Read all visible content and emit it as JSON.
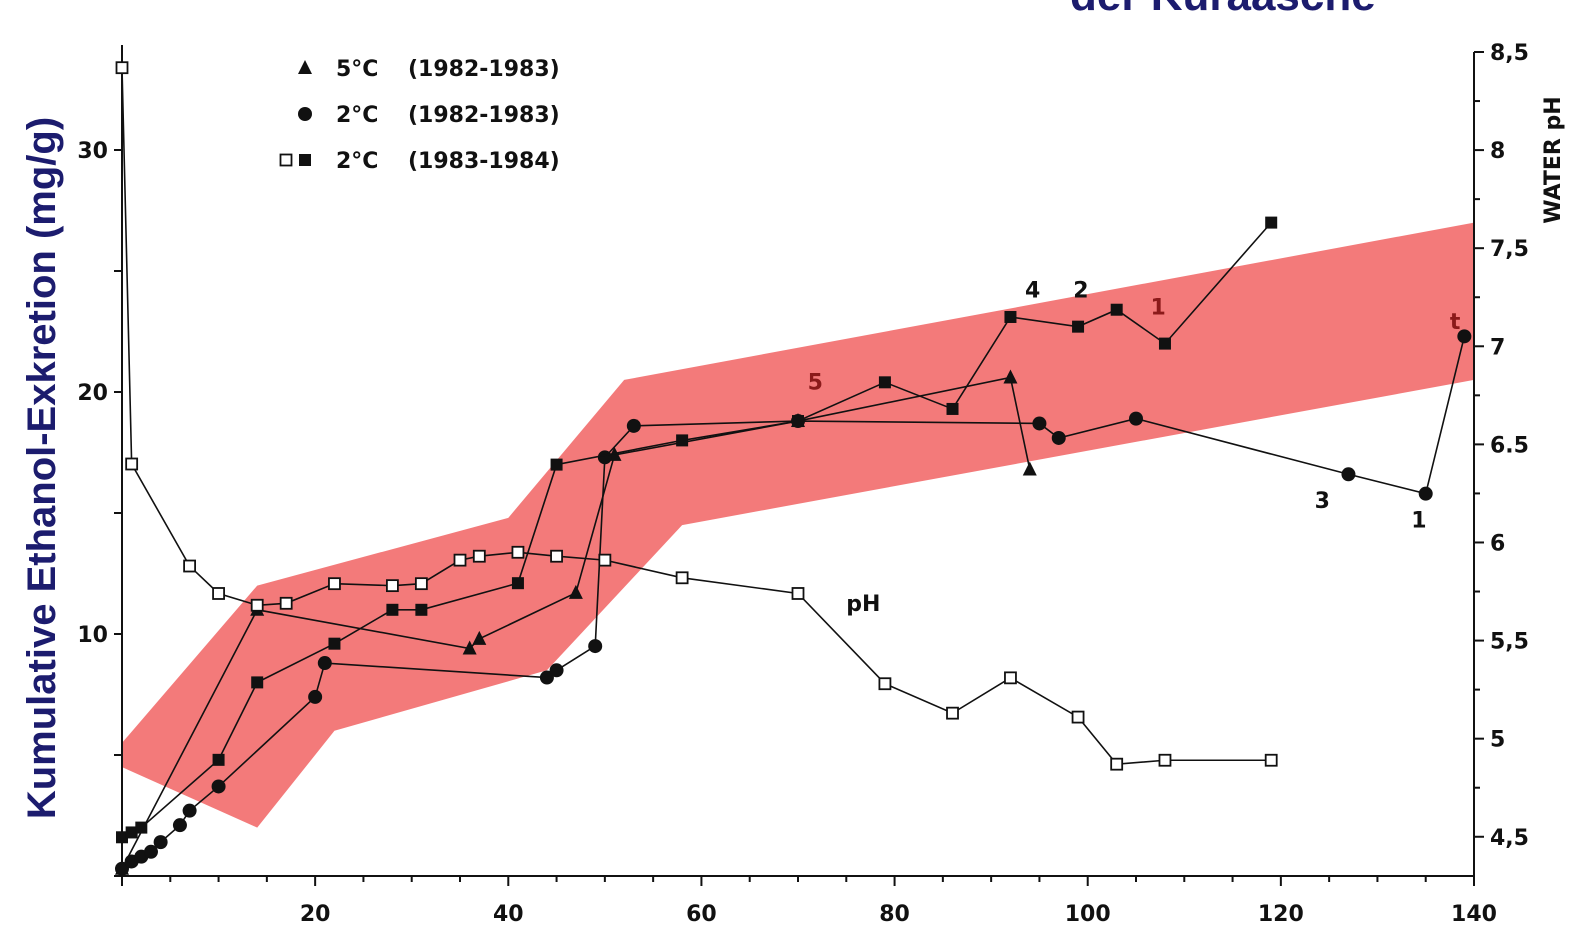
{
  "chart_data": {
    "type": "scatter",
    "top_text_fragment": "der Kuraasche",
    "ylabel": "Kumulative Ethanol-Exkretion (mg/g)",
    "y2label": "WATER pH",
    "xlim": [
      0,
      140
    ],
    "ylim": [
      0,
      30
    ],
    "y2lim": [
      4.3,
      8.5
    ],
    "x_ticks": [
      "20",
      "40",
      "60",
      "80",
      "100",
      "120",
      "140"
    ],
    "x_tick_values": [
      20,
      40,
      60,
      80,
      100,
      120,
      140
    ],
    "y_ticks": [
      "10",
      "20",
      "30"
    ],
    "y_tick_values": [
      10,
      20,
      30
    ],
    "y2_ticks": [
      "4,5",
      "5",
      "5,5",
      "6",
      "6.5",
      "7",
      "7,5",
      "8",
      "8,5"
    ],
    "y2_tick_values": [
      4.5,
      5,
      5.5,
      6,
      6.5,
      7,
      7.5,
      8,
      8.5
    ],
    "legend": [
      {
        "marker": "triangle",
        "label": "5°C",
        "years": "(1982-1983)"
      },
      {
        "marker": "circle",
        "label": "2°C",
        "years": "(1982-1983)"
      },
      {
        "marker": "square-open-filled",
        "label": "2°C",
        "years": "(1983-1984)"
      }
    ],
    "series": [
      {
        "name": "5°C (1982-1983)",
        "marker": "triangle",
        "axis": "left",
        "x": [
          0,
          14,
          36,
          37,
          47,
          51,
          70,
          92,
          94
        ],
        "y": [
          0.3,
          11.0,
          9.4,
          9.8,
          11.7,
          17.4,
          18.8,
          20.6,
          16.8
        ]
      },
      {
        "name": "2°C (1982-1983)",
        "marker": "circle",
        "axis": "left",
        "x": [
          0,
          1,
          2,
          3,
          4,
          6,
          7,
          10,
          20,
          21,
          44,
          45,
          49,
          50,
          53,
          70,
          95,
          97,
          105,
          127,
          135,
          139
        ],
        "y": [
          0.3,
          0.6,
          0.8,
          1.0,
          1.4,
          2.1,
          2.7,
          3.7,
          7.4,
          8.8,
          8.2,
          8.5,
          9.5,
          17.3,
          18.6,
          18.8,
          18.7,
          18.1,
          18.9,
          16.6,
          15.8,
          22.3
        ]
      },
      {
        "name": "2°C (1983-1984) filled",
        "marker": "square-filled",
        "axis": "left",
        "x": [
          0,
          1,
          2,
          10,
          14,
          22,
          28,
          31,
          41,
          45,
          58,
          70,
          79,
          86,
          92,
          99,
          103,
          108,
          119
        ],
        "y": [
          1.6,
          1.8,
          2.0,
          4.8,
          8.0,
          9.6,
          11.0,
          11.0,
          12.1,
          17.0,
          18.0,
          18.8,
          20.4,
          19.3,
          23.1,
          22.7,
          23.4,
          22.0,
          27.0
        ]
      },
      {
        "name": "2°C (1983-1984) open pH",
        "marker": "square-open",
        "axis": "right",
        "x": [
          0,
          1,
          7,
          10,
          14,
          17,
          22,
          28,
          31,
          35,
          37,
          41,
          45,
          50,
          58,
          70,
          79,
          86,
          92,
          99,
          103,
          108,
          119
        ],
        "y": [
          8.42,
          6.4,
          5.88,
          5.74,
          5.68,
          5.69,
          5.79,
          5.78,
          5.79,
          5.91,
          5.93,
          5.95,
          5.93,
          5.91,
          5.82,
          5.74,
          5.28,
          5.13,
          5.31,
          5.11,
          4.87,
          4.89,
          4.89
        ]
      }
    ],
    "annotations": [
      {
        "text": "pH",
        "x": 75,
        "y2": 5.65,
        "color": "#111"
      },
      {
        "text": "5",
        "x": 71,
        "y": 20.1,
        "color": "#8b1a1a"
      },
      {
        "text": "4",
        "x": 93.5,
        "y": 23.9,
        "color": "#111"
      },
      {
        "text": "2",
        "x": 98.5,
        "y": 23.9,
        "color": "#111"
      },
      {
        "text": "1",
        "x": 106.5,
        "y": 23.2,
        "color": "#8b1a1a"
      },
      {
        "text": "3",
        "x": 123.5,
        "y": 15.2,
        "color": "#111"
      },
      {
        "text": "1",
        "x": 133.5,
        "y": 14.4,
        "color": "#111"
      },
      {
        "text": "t",
        "x": 137.5,
        "y": 22.6,
        "color": "#8b1a1a"
      }
    ],
    "highlight_band": {
      "color": "#f26c6c",
      "upper": [
        [
          0,
          5.5
        ],
        [
          14,
          12.0
        ],
        [
          40,
          14.8
        ],
        [
          52,
          20.5
        ],
        [
          140,
          27.0
        ]
      ],
      "lower": [
        [
          140,
          20.5
        ],
        [
          58,
          14.5
        ],
        [
          44,
          8.5
        ],
        [
          22,
          6.0
        ],
        [
          14,
          2.0
        ],
        [
          0,
          4.5
        ]
      ]
    }
  }
}
